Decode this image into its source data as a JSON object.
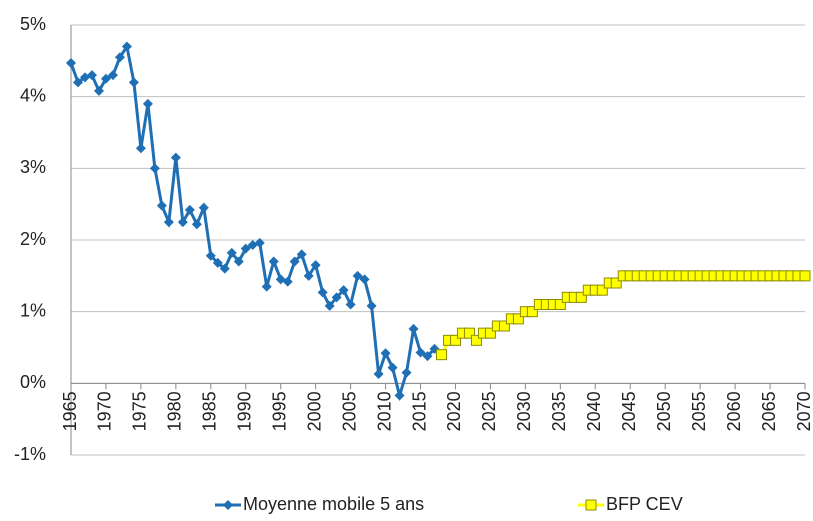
{
  "chart_data": {
    "type": "line",
    "x": [
      1965,
      1966,
      1967,
      1968,
      1969,
      1970,
      1971,
      1972,
      1973,
      1974,
      1975,
      1976,
      1977,
      1978,
      1979,
      1980,
      1981,
      1982,
      1983,
      1984,
      1985,
      1986,
      1987,
      1988,
      1989,
      1990,
      1991,
      1992,
      1993,
      1994,
      1995,
      1996,
      1997,
      1998,
      1999,
      2000,
      2001,
      2002,
      2003,
      2004,
      2005,
      2006,
      2007,
      2008,
      2009,
      2010,
      2011,
      2012,
      2013,
      2014,
      2015,
      2016,
      2017,
      2018,
      2019,
      2020,
      2021,
      2022,
      2023,
      2024,
      2025,
      2026,
      2027,
      2028,
      2029,
      2030,
      2031,
      2032,
      2033,
      2034,
      2035,
      2036,
      2037,
      2038,
      2039,
      2040,
      2041,
      2042,
      2043,
      2044,
      2045,
      2046,
      2047,
      2048,
      2049,
      2050,
      2051,
      2052,
      2053,
      2054,
      2055,
      2056,
      2057,
      2058,
      2059,
      2060,
      2061,
      2062,
      2063,
      2064,
      2065,
      2066,
      2067,
      2068,
      2069,
      2070
    ],
    "series": [
      {
        "name": "Moyenne mobile 5 ans",
        "color": "#1f6fb5",
        "marker": "diamond",
        "values": [
          4.47,
          4.2,
          4.27,
          4.3,
          4.08,
          4.25,
          4.3,
          4.55,
          4.7,
          4.2,
          3.28,
          3.9,
          3.0,
          2.48,
          2.25,
          3.15,
          2.25,
          2.42,
          2.22,
          2.45,
          1.78,
          1.68,
          1.6,
          1.82,
          1.7,
          1.88,
          1.93,
          1.96,
          1.35,
          1.7,
          1.45,
          1.42,
          1.7,
          1.8,
          1.5,
          1.65,
          1.27,
          1.08,
          1.2,
          1.3,
          1.1,
          1.5,
          1.45,
          1.08,
          0.13,
          0.42,
          0.22,
          -0.17,
          0.15,
          0.76,
          0.43,
          0.38,
          0.48,
          null,
          null,
          null,
          null,
          null,
          null,
          null,
          null,
          null,
          null,
          null,
          null,
          null,
          null,
          null,
          null,
          null,
          null,
          null,
          null,
          null,
          null,
          null,
          null,
          null,
          null,
          null,
          null,
          null,
          null,
          null,
          null,
          null,
          null,
          null,
          null,
          null,
          null,
          null,
          null,
          null,
          null,
          null,
          null,
          null,
          null,
          null,
          null,
          null,
          null,
          null,
          null,
          null
        ]
      },
      {
        "name": "BFP CEV",
        "color": "#ffff00",
        "marker": "square",
        "values": [
          null,
          null,
          null,
          null,
          null,
          null,
          null,
          null,
          null,
          null,
          null,
          null,
          null,
          null,
          null,
          null,
          null,
          null,
          null,
          null,
          null,
          null,
          null,
          null,
          null,
          null,
          null,
          null,
          null,
          null,
          null,
          null,
          null,
          null,
          null,
          null,
          null,
          null,
          null,
          null,
          null,
          null,
          null,
          null,
          null,
          null,
          null,
          null,
          null,
          null,
          null,
          null,
          null,
          0.4,
          0.6,
          0.6,
          0.7,
          0.7,
          0.6,
          0.7,
          0.7,
          0.8,
          0.8,
          0.9,
          0.9,
          1.0,
          1.0,
          1.1,
          1.1,
          1.1,
          1.1,
          1.2,
          1.2,
          1.2,
          1.3,
          1.3,
          1.3,
          1.4,
          1.4,
          1.5,
          1.5,
          1.5,
          1.5,
          1.5,
          1.5,
          1.5,
          1.5,
          1.5,
          1.5,
          1.5,
          1.5,
          1.5,
          1.5,
          1.5,
          1.5,
          1.5,
          1.5,
          1.5,
          1.5,
          1.5,
          1.5,
          1.5,
          1.5,
          1.5,
          1.5,
          1.5
        ]
      }
    ],
    "xlim": [
      1965,
      2070
    ],
    "xticks": [
      1965,
      1970,
      1975,
      1980,
      1985,
      1990,
      1995,
      2000,
      2005,
      2010,
      2015,
      2020,
      2025,
      2030,
      2035,
      2040,
      2045,
      2050,
      2055,
      2060,
      2065,
      2070
    ],
    "ylim": [
      -1,
      5
    ],
    "yticks": [
      {
        "value": -1,
        "label": "-1%"
      },
      {
        "value": 0,
        "label": "0%"
      },
      {
        "value": 1,
        "label": "1%"
      },
      {
        "value": 2,
        "label": "2%"
      },
      {
        "value": 3,
        "label": "3%"
      },
      {
        "value": 4,
        "label": "4%"
      },
      {
        "value": 5,
        "label": "5%"
      }
    ],
    "grid": true,
    "legend": "bottom"
  }
}
